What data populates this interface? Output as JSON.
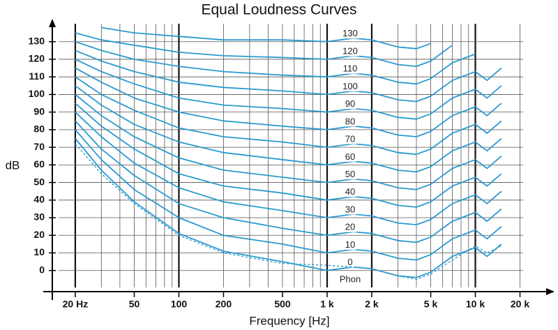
{
  "chart_data": {
    "type": "line",
    "title": "Equal Loudness Curves",
    "x_label": "Frequency [Hz]",
    "y_label": "dB",
    "annotation": "Phon",
    "log_x": true,
    "grid": true,
    "x": [
      20,
      30,
      50,
      100,
      200,
      500,
      1000,
      1500,
      2000,
      3000,
      4000,
      5000,
      7000,
      10000,
      12000,
      15000
    ],
    "series": [
      {
        "name": "130",
        "color": "#2a9ad0",
        "values": [
          null,
          138,
          135,
          133,
          131,
          131,
          130,
          132,
          131,
          127,
          126,
          129,
          null,
          null,
          null,
          null
        ]
      },
      {
        "name": "120",
        "color": "#2a9ad0",
        "values": [
          135,
          131,
          128,
          124,
          122,
          121,
          120,
          122,
          121,
          117,
          116,
          119,
          128,
          null,
          null,
          null
        ]
      },
      {
        "name": "110",
        "color": "#2a9ad0",
        "values": [
          130,
          125,
          120,
          116,
          113,
          111,
          110,
          112,
          111,
          107,
          106,
          109,
          118,
          123,
          null,
          null
        ]
      },
      {
        "name": "100",
        "color": "#2a9ad0",
        "values": [
          125,
          119,
          113,
          107,
          104,
          102,
          100,
          102,
          101,
          97,
          96,
          99,
          108,
          113,
          108,
          115
        ]
      },
      {
        "name": "90",
        "color": "#2a9ad0",
        "values": [
          120,
          113,
          106,
          98,
          94,
          92,
          90,
          92,
          91,
          87,
          86,
          89,
          98,
          103,
          98,
          105
        ]
      },
      {
        "name": "80",
        "color": "#2a9ad0",
        "values": [
          115,
          107,
          98,
          90,
          85,
          82,
          80,
          82,
          81,
          77,
          76,
          79,
          88,
          93,
          88,
          95
        ]
      },
      {
        "name": "70",
        "color": "#2a9ad0",
        "values": [
          110,
          100,
          91,
          81,
          76,
          73,
          70,
          72,
          71,
          67,
          66,
          69,
          78,
          83,
          78,
          85
        ]
      },
      {
        "name": "60",
        "color": "#2a9ad0",
        "values": [
          105,
          94,
          83,
          73,
          67,
          63,
          60,
          62,
          61,
          57,
          56,
          59,
          68,
          73,
          68,
          75
        ]
      },
      {
        "name": "50",
        "color": "#2a9ad0",
        "values": [
          100,
          88,
          76,
          64,
          57,
          53,
          50,
          52,
          51,
          47,
          46,
          49,
          58,
          63,
          58,
          65
        ]
      },
      {
        "name": "40",
        "color": "#2a9ad0",
        "values": [
          95,
          82,
          69,
          55,
          48,
          44,
          40,
          42,
          41,
          37,
          36,
          39,
          48,
          53,
          48,
          55
        ]
      },
      {
        "name": "30",
        "color": "#2a9ad0",
        "values": [
          90,
          76,
          61,
          47,
          39,
          34,
          30,
          32,
          31,
          27,
          26,
          29,
          38,
          43,
          38,
          45
        ]
      },
      {
        "name": "20",
        "color": "#2a9ad0",
        "values": [
          85,
          69,
          54,
          38,
          30,
          24,
          20,
          22,
          21,
          17,
          16,
          19,
          28,
          33,
          28,
          35
        ]
      },
      {
        "name": "10",
        "color": "#2a9ad0",
        "values": [
          80,
          63,
          46,
          30,
          20,
          15,
          10,
          12,
          11,
          7,
          6,
          9,
          18,
          23,
          18,
          25
        ]
      },
      {
        "name": "0",
        "color": "#2a9ad0",
        "values": [
          75,
          57,
          39,
          21,
          11,
          5,
          0,
          2,
          1,
          -3,
          -4,
          -1,
          8,
          13,
          8,
          15
        ]
      },
      {
        "color": "#2a9ad0",
        "dash": true,
        "values": [
          72,
          55,
          38,
          20,
          10,
          4,
          3,
          2,
          1,
          -3,
          -5,
          -2,
          6,
          14,
          10,
          14
        ]
      }
    ],
    "xlim": [
      14,
      21000
    ],
    "ylim": [
      -12,
      140
    ],
    "xticks": [
      {
        "value": 20,
        "label": "20 Hz"
      },
      50,
      100,
      200,
      500,
      {
        "value": 1000,
        "label": "1 k"
      },
      {
        "value": 2000,
        "label": "2 k"
      },
      {
        "value": 5000,
        "label": "5 k"
      },
      {
        "value": 10000,
        "label": "10 k"
      },
      {
        "value": 20000,
        "label": "20 k"
      }
    ],
    "yticks": [
      0,
      10,
      20,
      30,
      40,
      50,
      60,
      70,
      80,
      90,
      100,
      110,
      120,
      130
    ],
    "xgrid": [
      20,
      30,
      40,
      50,
      60,
      70,
      80,
      90,
      100,
      200,
      300,
      400,
      500,
      600,
      700,
      800,
      900,
      1000,
      2000,
      3000,
      4000,
      5000,
      6000,
      7000,
      8000,
      9000,
      10000,
      20000
    ],
    "xgrid_bold": [
      20,
      100,
      1000,
      2000,
      10000
    ]
  }
}
